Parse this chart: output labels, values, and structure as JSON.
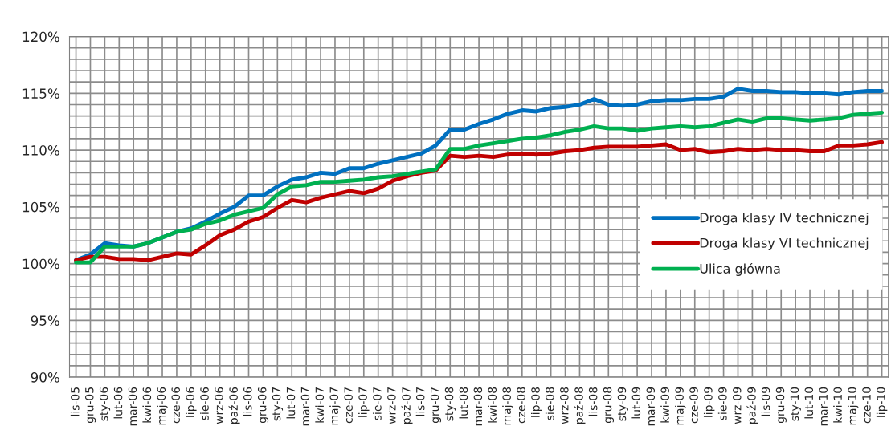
{
  "chart_data": {
    "type": "line",
    "categories": [
      "lis-05",
      "gru-05",
      "sty-06",
      "lut-06",
      "mar-06",
      "kwi-06",
      "maj-06",
      "cze-06",
      "lip-06",
      "sie-06",
      "wrz-06",
      "paź-06",
      "lis-06",
      "gru-06",
      "sty-07",
      "lut-07",
      "mar-07",
      "kwi-07",
      "maj-07",
      "cze-07",
      "lip-07",
      "sie-07",
      "wrz-07",
      "paź-07",
      "lis-07",
      "gru-07",
      "sty-08",
      "lut-08",
      "mar-08",
      "kwi-08",
      "maj-08",
      "cze-08",
      "lip-08",
      "sie-08",
      "wrz-08",
      "paź-08",
      "lis-08",
      "gru-08",
      "sty-09",
      "lut-09",
      "mar-09",
      "kwi-09",
      "maj-09",
      "cze-09",
      "lip-09",
      "sie-09",
      "wrz-09",
      "paź-09",
      "lis-09",
      "gru-09",
      "sty-10",
      "lut-10",
      "mar-10",
      "kwi-10",
      "maj-10",
      "cze-10",
      "lip-10"
    ],
    "series": [
      {
        "name": "Droga klasy IV technicznej",
        "color": "#0070c0",
        "values": [
          100.3,
          100.8,
          101.8,
          101.6,
          101.5,
          101.8,
          102.3,
          102.8,
          103.1,
          103.7,
          104.4,
          105.0,
          106.0,
          106.0,
          106.8,
          107.4,
          107.6,
          108.0,
          107.9,
          108.4,
          108.4,
          108.8,
          109.1,
          109.4,
          109.7,
          110.4,
          111.8,
          111.8,
          112.3,
          112.7,
          113.2,
          113.5,
          113.4,
          113.7,
          113.8,
          114.0,
          114.5,
          114.0,
          113.9,
          114.0,
          114.3,
          114.4,
          114.4,
          114.5,
          114.5,
          114.7,
          115.4,
          115.2,
          115.2,
          115.1,
          115.1,
          115.0,
          115.0,
          114.9,
          115.1,
          115.2,
          115.2
        ]
      },
      {
        "name": "Droga klasy VI technicznej",
        "color": "#c00000",
        "values": [
          100.3,
          100.6,
          100.6,
          100.4,
          100.4,
          100.3,
          100.6,
          100.9,
          100.8,
          101.6,
          102.5,
          103.0,
          103.7,
          104.1,
          104.9,
          105.6,
          105.4,
          105.8,
          106.1,
          106.4,
          106.2,
          106.6,
          107.3,
          107.7,
          108.0,
          108.2,
          109.5,
          109.4,
          109.5,
          109.4,
          109.6,
          109.7,
          109.6,
          109.7,
          109.9,
          110.0,
          110.2,
          110.3,
          110.3,
          110.3,
          110.4,
          110.5,
          110.0,
          110.1,
          109.8,
          109.9,
          110.1,
          110.0,
          110.1,
          110.0,
          110.0,
          109.9,
          109.9,
          110.4,
          110.4,
          110.5,
          110.7
        ]
      },
      {
        "name": "Ulica główna",
        "color": "#00b050",
        "values": [
          100.1,
          100.1,
          101.5,
          101.5,
          101.5,
          101.8,
          102.3,
          102.8,
          103.0,
          103.5,
          103.8,
          104.3,
          104.6,
          104.9,
          106.1,
          106.8,
          106.9,
          107.2,
          107.2,
          107.3,
          107.4,
          107.6,
          107.7,
          107.9,
          108.1,
          108.3,
          110.1,
          110.1,
          110.4,
          110.6,
          110.8,
          111.0,
          111.1,
          111.3,
          111.6,
          111.8,
          112.1,
          111.9,
          111.9,
          111.7,
          111.9,
          112.0,
          112.1,
          112.0,
          112.1,
          112.4,
          112.7,
          112.5,
          112.8,
          112.8,
          112.7,
          112.6,
          112.7,
          112.8,
          113.1,
          113.2,
          113.3
        ]
      }
    ],
    "ylim": [
      90,
      120
    ],
    "yticks": [
      {
        "value": 90,
        "label": "90%"
      },
      {
        "value": 91,
        "label": null
      },
      {
        "value": 92,
        "label": null
      },
      {
        "value": 93,
        "label": null
      },
      {
        "value": 94,
        "label": null
      },
      {
        "value": 95,
        "label": "95%"
      },
      {
        "value": 96,
        "label": null
      },
      {
        "value": 97,
        "label": null
      },
      {
        "value": 98,
        "label": null
      },
      {
        "value": 99,
        "label": null
      },
      {
        "value": 100,
        "label": "100%"
      },
      {
        "value": 101,
        "label": null
      },
      {
        "value": 102,
        "label": null
      },
      {
        "value": 103,
        "label": null
      },
      {
        "value": 104,
        "label": null
      },
      {
        "value": 105,
        "label": "105%"
      },
      {
        "value": 106,
        "label": null
      },
      {
        "value": 107,
        "label": null
      },
      {
        "value": 108,
        "label": null
      },
      {
        "value": 109,
        "label": null
      },
      {
        "value": 110,
        "label": "110%"
      },
      {
        "value": 111,
        "label": null
      },
      {
        "value": 112,
        "label": null
      },
      {
        "value": 113,
        "label": null
      },
      {
        "value": 114,
        "label": null
      },
      {
        "value": 115,
        "label": "115%"
      },
      {
        "value": 116,
        "label": null
      },
      {
        "value": 117,
        "label": null
      },
      {
        "value": 118,
        "label": null
      },
      {
        "value": 119,
        "label": null
      },
      {
        "value": 120,
        "label": "120%"
      }
    ],
    "grid": true,
    "legend": "right",
    "marker": "none",
    "line_style": "solid"
  }
}
